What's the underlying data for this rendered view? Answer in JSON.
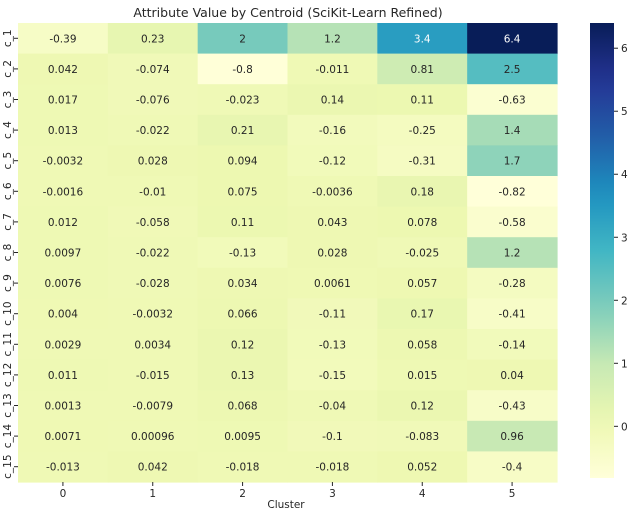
{
  "chart_data": {
    "type": "heatmap",
    "title": "Attribute Value by Centroid (SciKit-Learn Refined)",
    "xlabel": "Cluster",
    "ylabel": "",
    "x": [
      "0",
      "1",
      "2",
      "3",
      "4",
      "5"
    ],
    "y": [
      "c_1",
      "c_2",
      "c_3",
      "c_4",
      "c_5",
      "c_6",
      "c_7",
      "c_8",
      "c_9",
      "c_10",
      "c_11",
      "c_12",
      "c_13",
      "c_14",
      "c_15"
    ],
    "values": [
      [
        -0.39,
        0.23,
        2,
        1.2,
        3.4,
        6.4
      ],
      [
        0.042,
        -0.074,
        -0.8,
        -0.011,
        0.81,
        2.5
      ],
      [
        0.017,
        -0.076,
        -0.023,
        0.14,
        0.11,
        -0.63
      ],
      [
        0.013,
        -0.022,
        0.21,
        -0.16,
        -0.25,
        1.4
      ],
      [
        -0.0032,
        0.028,
        0.094,
        -0.12,
        -0.31,
        1.7
      ],
      [
        -0.0016,
        -0.01,
        0.075,
        -0.0036,
        0.18,
        -0.82
      ],
      [
        0.012,
        -0.058,
        0.11,
        0.043,
        0.078,
        -0.58
      ],
      [
        0.0097,
        -0.022,
        -0.13,
        0.028,
        -0.025,
        1.2
      ],
      [
        0.0076,
        -0.028,
        0.034,
        0.0061,
        0.057,
        -0.28
      ],
      [
        0.004,
        -0.0032,
        0.066,
        -0.11,
        0.17,
        -0.41
      ],
      [
        0.0029,
        0.0034,
        0.12,
        -0.13,
        0.058,
        -0.14
      ],
      [
        0.011,
        -0.015,
        0.13,
        -0.15,
        0.015,
        0.04
      ],
      [
        0.0013,
        -0.0079,
        0.068,
        -0.04,
        0.12,
        -0.43
      ],
      [
        0.0071,
        0.00096,
        0.0095,
        -0.1,
        -0.083,
        0.96
      ],
      [
        -0.013,
        0.042,
        -0.018,
        -0.018,
        0.052,
        -0.4
      ]
    ],
    "colormap": "YlGnBu",
    "color_range": [
      -0.82,
      6.4
    ],
    "colorbar_ticks": [
      0,
      1,
      2,
      3,
      4,
      5,
      6
    ],
    "grid": false,
    "legend": "colorbar-right"
  }
}
